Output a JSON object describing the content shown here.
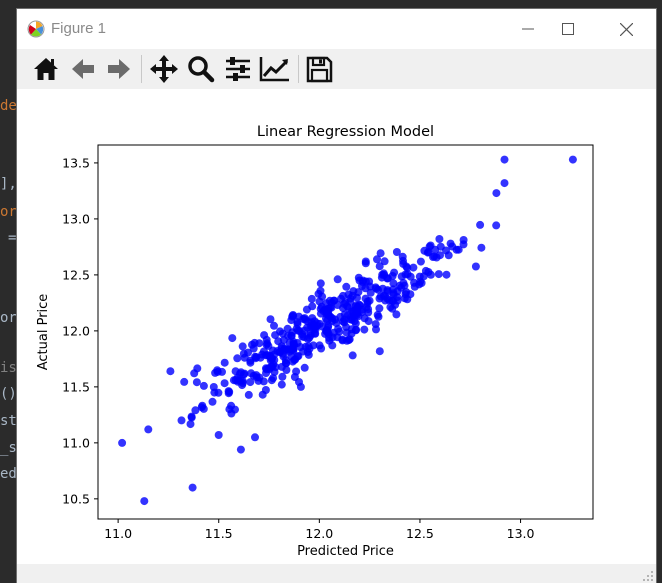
{
  "window": {
    "title": "Figure 1"
  },
  "editor_fragments": [
    "de",
    "],",
    "or",
    "=",
    "or",
    "is",
    "()",
    "st",
    "_s",
    "ed"
  ],
  "toolbar": {
    "items": [
      {
        "name": "home-button",
        "icon": "home-icon"
      },
      {
        "name": "back-button",
        "icon": "arrow-left-icon"
      },
      {
        "name": "forward-button",
        "icon": "arrow-right-icon"
      },
      {
        "name": "pan-button",
        "icon": "move-icon"
      },
      {
        "name": "zoom-button",
        "icon": "magnifier-icon"
      },
      {
        "name": "configure-subplots-button",
        "icon": "sliders-icon"
      },
      {
        "name": "edit-axis-button",
        "icon": "line-chart-icon"
      },
      {
        "name": "save-button",
        "icon": "floppy-disk-icon"
      }
    ]
  },
  "chart_data": {
    "type": "scatter",
    "title": "Linear Regression Model",
    "xlabel": "Predicted Price",
    "ylabel": "Actual Price",
    "xlim": [
      10.9,
      13.36
    ],
    "ylim": [
      10.32,
      13.66
    ],
    "xticks": [
      "11.0",
      "11.5",
      "12.0",
      "12.5",
      "13.0"
    ],
    "yticks": [
      "10.5",
      "11.0",
      "11.5",
      "12.0",
      "12.5",
      "13.0",
      "13.5"
    ],
    "color": "#0000ff",
    "grid": false,
    "outliers": [
      [
        11.02,
        11.0
      ],
      [
        11.13,
        10.48
      ],
      [
        11.37,
        10.6
      ],
      [
        11.15,
        11.12
      ],
      [
        11.5,
        11.07
      ],
      [
        11.61,
        10.94
      ],
      [
        11.68,
        11.05
      ],
      [
        11.26,
        11.64
      ],
      [
        13.26,
        13.53
      ],
      [
        12.92,
        13.53
      ],
      [
        12.92,
        13.32
      ],
      [
        12.88,
        13.23
      ]
    ],
    "cluster": {
      "count": 430,
      "x_range": [
        11.3,
        12.92
      ],
      "slope": 1.02,
      "intercept_at_12": 12.02,
      "spread": 0.14
    }
  }
}
